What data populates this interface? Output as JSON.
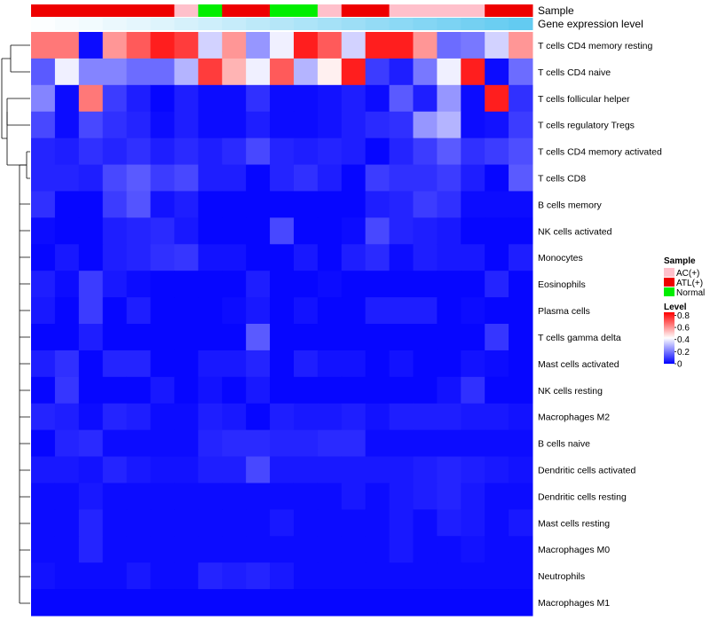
{
  "chart_data": {
    "type": "heatmap",
    "title": "",
    "annotation_labels": {
      "sample": "Sample",
      "gene_expression": "Gene expression level"
    },
    "rows": [
      "T cells CD4 memory resting",
      "T cells CD4 naive",
      "T cells follicular helper",
      "T cells regulatory  Tregs",
      "T cells CD4 memory activated",
      "T cells CD8",
      "B cells memory",
      "NK cells activated",
      "Monocytes",
      "Eosinophils",
      "Plasma cells",
      "T cells gamma delta",
      "Mast cells activated",
      "NK cells resting",
      "Macrophages M2",
      "B cells naive",
      "Dendritic cells activated",
      "Dendritic cells resting",
      "Mast cells resting",
      "Macrophages M0",
      "Neutrophils",
      "Macrophages M1"
    ],
    "sample_groups": [
      "ATL(+)",
      "ATL(+)",
      "ATL(+)",
      "ATL(+)",
      "ATL(+)",
      "ATL(+)",
      "AC(+)",
      "Normal",
      "ATL(+)",
      "ATL(+)",
      "Normal",
      "Normal",
      "AC(+)",
      "ATL(+)",
      "ATL(+)",
      "AC(+)",
      "AC(+)",
      "AC(+)",
      "AC(+)",
      "ATL(+)",
      "ATL(+)"
    ],
    "gene_expression_level": [
      0.02,
      0.05,
      0.08,
      0.12,
      0.16,
      0.2,
      0.25,
      0.3,
      0.35,
      0.4,
      0.45,
      0.5,
      0.55,
      0.6,
      0.65,
      0.7,
      0.75,
      0.8,
      0.85,
      0.9,
      0.95
    ],
    "values": [
      [
        0.65,
        0.65,
        0.02,
        0.6,
        0.7,
        0.8,
        0.75,
        0.35,
        0.6,
        0.25,
        0.4,
        0.8,
        0.7,
        0.35,
        0.8,
        0.8,
        0.6,
        0.18,
        0.2,
        0.35,
        0.6
      ],
      [
        0.15,
        0.4,
        0.22,
        0.22,
        0.18,
        0.18,
        0.3,
        0.75,
        0.55,
        0.4,
        0.7,
        0.3,
        0.45,
        0.8,
        0.1,
        0.05,
        0.2,
        0.4,
        0.8,
        0.02,
        0.18
      ],
      [
        0.22,
        0.02,
        0.65,
        0.1,
        0.05,
        0.01,
        0.05,
        0.02,
        0.02,
        0.08,
        0.02,
        0.02,
        0.03,
        0.05,
        0.02,
        0.15,
        0.05,
        0.25,
        0.02,
        0.8,
        0.08
      ],
      [
        0.12,
        0.02,
        0.12,
        0.08,
        0.06,
        0.02,
        0.05,
        0.02,
        0.02,
        0.05,
        0.02,
        0.02,
        0.03,
        0.05,
        0.07,
        0.08,
        0.25,
        0.3,
        0.02,
        0.03,
        0.1
      ],
      [
        0.06,
        0.05,
        0.08,
        0.06,
        0.08,
        0.05,
        0.07,
        0.05,
        0.07,
        0.12,
        0.06,
        0.05,
        0.06,
        0.05,
        0.01,
        0.06,
        0.1,
        0.15,
        0.08,
        0.1,
        0.13
      ],
      [
        0.06,
        0.06,
        0.05,
        0.12,
        0.15,
        0.1,
        0.12,
        0.05,
        0.05,
        0.01,
        0.06,
        0.08,
        0.05,
        0.01,
        0.1,
        0.08,
        0.08,
        0.1,
        0.05,
        0.01,
        0.15
      ],
      [
        0.08,
        0.01,
        0.01,
        0.1,
        0.14,
        0.03,
        0.05,
        0.01,
        0.01,
        0.01,
        0.01,
        0.01,
        0.01,
        0.01,
        0.05,
        0.06,
        0.1,
        0.08,
        0.02,
        0.02,
        0.02
      ],
      [
        0.02,
        0.01,
        0.01,
        0.05,
        0.06,
        0.07,
        0.04,
        0.01,
        0.01,
        0.01,
        0.12,
        0.01,
        0.01,
        0.02,
        0.12,
        0.06,
        0.05,
        0.04,
        0.01,
        0.01,
        0.01
      ],
      [
        0.01,
        0.04,
        0.01,
        0.05,
        0.06,
        0.08,
        0.09,
        0.03,
        0.03,
        0.01,
        0.01,
        0.04,
        0.01,
        0.05,
        0.07,
        0.02,
        0.05,
        0.04,
        0.04,
        0.01,
        0.05
      ],
      [
        0.05,
        0.02,
        0.1,
        0.04,
        0.02,
        0.01,
        0.01,
        0.01,
        0.01,
        0.05,
        0.01,
        0.01,
        0.02,
        0.01,
        0.01,
        0.01,
        0.01,
        0.01,
        0.01,
        0.06,
        0.01
      ],
      [
        0.04,
        0.01,
        0.1,
        0.01,
        0.05,
        0.01,
        0.01,
        0.01,
        0.02,
        0.04,
        0.01,
        0.03,
        0.01,
        0.01,
        0.05,
        0.05,
        0.05,
        0.01,
        0.02,
        0.01,
        0.01
      ],
      [
        0.01,
        0.01,
        0.05,
        0.01,
        0.01,
        0.01,
        0.01,
        0.01,
        0.01,
        0.15,
        0.01,
        0.01,
        0.01,
        0.01,
        0.01,
        0.01,
        0.01,
        0.01,
        0.01,
        0.09,
        0.01
      ],
      [
        0.05,
        0.08,
        0.01,
        0.06,
        0.06,
        0.01,
        0.01,
        0.04,
        0.04,
        0.06,
        0.01,
        0.05,
        0.03,
        0.03,
        0.01,
        0.03,
        0.01,
        0.01,
        0.03,
        0.02,
        0.01
      ],
      [
        0.01,
        0.09,
        0.01,
        0.01,
        0.01,
        0.04,
        0.01,
        0.03,
        0.01,
        0.04,
        0.01,
        0.01,
        0.01,
        0.01,
        0.01,
        0.01,
        0.01,
        0.03,
        0.08,
        0.01,
        0.01
      ],
      [
        0.06,
        0.05,
        0.02,
        0.06,
        0.05,
        0.02,
        0.02,
        0.05,
        0.04,
        0.01,
        0.05,
        0.04,
        0.04,
        0.05,
        0.03,
        0.05,
        0.05,
        0.05,
        0.04,
        0.04,
        0.03
      ],
      [
        0.01,
        0.06,
        0.07,
        0.02,
        0.02,
        0.02,
        0.02,
        0.06,
        0.07,
        0.07,
        0.06,
        0.06,
        0.07,
        0.07,
        0.02,
        0.02,
        0.02,
        0.02,
        0.02,
        0.02,
        0.02
      ],
      [
        0.04,
        0.04,
        0.03,
        0.06,
        0.04,
        0.03,
        0.03,
        0.05,
        0.05,
        0.12,
        0.04,
        0.04,
        0.04,
        0.04,
        0.04,
        0.04,
        0.05,
        0.06,
        0.05,
        0.04,
        0.03
      ],
      [
        0.02,
        0.02,
        0.04,
        0.02,
        0.02,
        0.02,
        0.02,
        0.02,
        0.02,
        0.02,
        0.02,
        0.02,
        0.02,
        0.04,
        0.02,
        0.04,
        0.05,
        0.06,
        0.04,
        0.02,
        0.02
      ],
      [
        0.02,
        0.02,
        0.06,
        0.02,
        0.02,
        0.02,
        0.02,
        0.02,
        0.02,
        0.02,
        0.04,
        0.02,
        0.02,
        0.02,
        0.02,
        0.04,
        0.02,
        0.05,
        0.04,
        0.02,
        0.04
      ],
      [
        0.02,
        0.02,
        0.06,
        0.02,
        0.02,
        0.02,
        0.02,
        0.02,
        0.02,
        0.02,
        0.02,
        0.02,
        0.02,
        0.02,
        0.02,
        0.04,
        0.02,
        0.02,
        0.03,
        0.02,
        0.02
      ],
      [
        0.03,
        0.02,
        0.02,
        0.02,
        0.04,
        0.02,
        0.02,
        0.06,
        0.05,
        0.06,
        0.04,
        0.02,
        0.02,
        0.02,
        0.02,
        0.02,
        0.02,
        0.02,
        0.02,
        0.02,
        0.02
      ],
      [
        0.01,
        0.01,
        0.01,
        0.01,
        0.01,
        0.01,
        0.01,
        0.01,
        0.01,
        0.01,
        0.01,
        0.01,
        0.01,
        0.01,
        0.01,
        0.01,
        0.01,
        0.01,
        0.01,
        0.01,
        0.01
      ]
    ],
    "legend": {
      "sample": {
        "title": "Sample",
        "entries": [
          {
            "label": "AC(+)",
            "color": "#ffc0cb"
          },
          {
            "label": "ATL(+)",
            "color": "#ee0000"
          },
          {
            "label": "Normal",
            "color": "#00ee00"
          }
        ]
      },
      "level": {
        "title": "Level",
        "ticks": [
          "0.8",
          "0.6",
          "0.4",
          "0.2",
          "0"
        ],
        "tick_values": [
          0.8,
          0.6,
          0.4,
          0.2,
          0
        ],
        "range": [
          0,
          0.85
        ],
        "colors": [
          "#0000ff",
          "#ffffff",
          "#ff0000"
        ]
      },
      "position": "right"
    },
    "gene_expression_colors": [
      "#ffffff",
      "#5bc8f0"
    ]
  }
}
